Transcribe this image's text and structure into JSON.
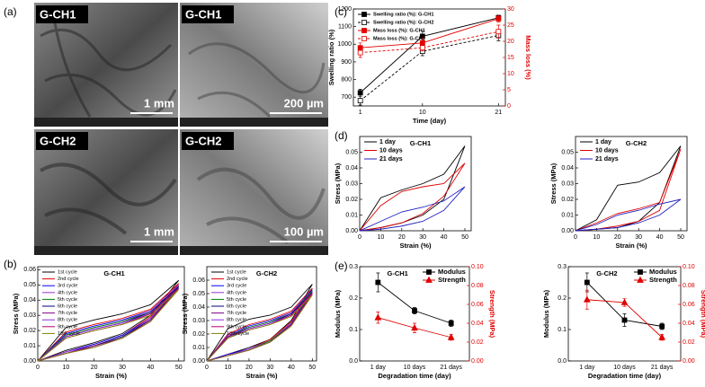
{
  "panel_labels": [
    "(a)",
    "(b)",
    "(c)",
    "(d)",
    "(e)"
  ],
  "sem_images": [
    {
      "label": "G-CH1",
      "scale": "1 mm"
    },
    {
      "label": "G-CH1",
      "scale": "200 µm"
    },
    {
      "label": "G-CH2",
      "scale": "1 mm"
    },
    {
      "label": "G-CH2",
      "scale": "100 µm"
    }
  ],
  "chart_data": [
    {
      "type": "line",
      "title": "G-CH1",
      "xlabel": "Strain (%)",
      "ylabel": "Stress (MPa)",
      "legend": "upper-left",
      "x": [
        0,
        10,
        20,
        30,
        40,
        50,
        40,
        30,
        20,
        10,
        0
      ],
      "xlim": [
        0,
        52
      ],
      "xticks": [
        0,
        10,
        20,
        30,
        40,
        50
      ],
      "ylim": [
        0,
        0.062
      ],
      "yticks": [
        {
          "value": 0,
          "label": "0.00"
        },
        0.01,
        0.02,
        0.03,
        0.04,
        0.05,
        0.06
      ],
      "series": [
        {
          "name": "1st cycle",
          "color": "#000000",
          "values": [
            0,
            0.022,
            0.027,
            0.031,
            0.037,
            0.053,
            0.03,
            0.018,
            0.012,
            0.007,
            0
          ]
        },
        {
          "name": "2nd cycle",
          "color": "#e00000",
          "values": [
            0,
            0.019,
            0.024,
            0.028,
            0.034,
            0.051,
            0.029,
            0.017,
            0.011,
            0.006,
            0
          ]
        },
        {
          "name": "3rd cycle",
          "color": "#0000ff",
          "values": [
            0,
            0.018,
            0.023,
            0.027,
            0.033,
            0.05,
            0.028,
            0.017,
            0.011,
            0.006,
            0
          ]
        },
        {
          "name": "4th cycle",
          "color": "#9933cc",
          "values": [
            0,
            0.017,
            0.022,
            0.026,
            0.033,
            0.05,
            0.028,
            0.016,
            0.01,
            0.006,
            0
          ]
        },
        {
          "name": "5th cycle",
          "color": "#008000",
          "values": [
            0,
            0.017,
            0.022,
            0.026,
            0.032,
            0.049,
            0.027,
            0.016,
            0.01,
            0.005,
            0
          ]
        },
        {
          "name": "6th cycle",
          "color": "#000080",
          "values": [
            0,
            0.016,
            0.021,
            0.025,
            0.032,
            0.049,
            0.027,
            0.016,
            0.01,
            0.005,
            0
          ]
        },
        {
          "name": "7th cycle",
          "color": "#800080",
          "values": [
            0,
            0.016,
            0.021,
            0.025,
            0.031,
            0.048,
            0.027,
            0.015,
            0.01,
            0.005,
            0
          ]
        },
        {
          "name": "8th cycle",
          "color": "#8a2be2",
          "values": [
            0,
            0.016,
            0.021,
            0.025,
            0.031,
            0.048,
            0.026,
            0.015,
            0.009,
            0.005,
            0
          ]
        },
        {
          "name": "9th cycle",
          "color": "#b0006b",
          "values": [
            0,
            0.015,
            0.02,
            0.024,
            0.031,
            0.048,
            0.026,
            0.015,
            0.009,
            0.005,
            0
          ]
        },
        {
          "name": "10th cycle",
          "color": "#808000",
          "values": [
            0,
            0.015,
            0.02,
            0.024,
            0.03,
            0.047,
            0.026,
            0.015,
            0.009,
            0.005,
            0
          ]
        }
      ]
    },
    {
      "type": "line",
      "title": "G-CH2",
      "xlabel": "Strain (%)",
      "ylabel": "Stress (MPa)",
      "legend": "upper-left",
      "x": [
        0,
        10,
        20,
        30,
        40,
        50,
        40,
        30,
        20,
        10,
        0
      ],
      "xlim": [
        0,
        52
      ],
      "xticks": [
        0,
        10,
        20,
        30,
        40,
        50
      ],
      "ylim": [
        0,
        0.07
      ],
      "yticks": [
        {
          "value": 0,
          "label": "0.00"
        },
        0.01,
        0.02,
        0.03,
        0.04,
        0.05,
        0.06
      ],
      "series": [
        {
          "name": "1st cycle",
          "color": "#000000",
          "values": [
            0,
            0.024,
            0.031,
            0.034,
            0.04,
            0.057,
            0.03,
            0.016,
            0.01,
            0.005,
            0
          ]
        },
        {
          "name": "2nd cycle",
          "color": "#e00000",
          "values": [
            0,
            0.02,
            0.027,
            0.031,
            0.037,
            0.054,
            0.029,
            0.016,
            0.009,
            0.005,
            0
          ]
        },
        {
          "name": "3rd cycle",
          "color": "#0000ff",
          "values": [
            0,
            0.019,
            0.026,
            0.03,
            0.036,
            0.053,
            0.028,
            0.015,
            0.009,
            0.005,
            0
          ]
        },
        {
          "name": "4th cycle",
          "color": "#9933cc",
          "values": [
            0,
            0.019,
            0.025,
            0.029,
            0.036,
            0.052,
            0.028,
            0.015,
            0.009,
            0.004,
            0
          ]
        },
        {
          "name": "5th cycle",
          "color": "#008000",
          "values": [
            0,
            0.018,
            0.025,
            0.029,
            0.035,
            0.052,
            0.027,
            0.015,
            0.008,
            0.004,
            0
          ]
        },
        {
          "name": "6th cycle",
          "color": "#000080",
          "values": [
            0,
            0.018,
            0.024,
            0.028,
            0.035,
            0.051,
            0.027,
            0.014,
            0.008,
            0.004,
            0
          ]
        },
        {
          "name": "7th cycle",
          "color": "#800080",
          "values": [
            0,
            0.018,
            0.024,
            0.028,
            0.034,
            0.051,
            0.027,
            0.014,
            0.008,
            0.004,
            0
          ]
        },
        {
          "name": "8th cycle",
          "color": "#8a2be2",
          "values": [
            0,
            0.017,
            0.024,
            0.028,
            0.034,
            0.05,
            0.026,
            0.014,
            0.008,
            0.004,
            0
          ]
        },
        {
          "name": "9th cycle",
          "color": "#b0006b",
          "values": [
            0,
            0.017,
            0.023,
            0.027,
            0.034,
            0.05,
            0.026,
            0.014,
            0.008,
            0.004,
            0
          ]
        },
        {
          "name": "10th cycle",
          "color": "#808000",
          "values": [
            0,
            0.017,
            0.023,
            0.027,
            0.033,
            0.049,
            0.026,
            0.014,
            0.008,
            0.004,
            0
          ]
        }
      ]
    },
    {
      "type": "line",
      "xlabel": "Time (day)",
      "ylabel": "Swelling ratio (%)",
      "y2label": "Mass loss (%)",
      "legend": "upper-left",
      "y2color": "#e00000",
      "markers": true,
      "x": [
        1,
        10,
        21
      ],
      "xlim": [
        0,
        22
      ],
      "xticks": [
        1,
        10,
        21
      ],
      "ylim": [
        650,
        1200
      ],
      "yticks": [
        700,
        800,
        900,
        1000,
        1100,
        1200
      ],
      "y2lim": [
        0,
        30
      ],
      "y2ticks": [
        0,
        5,
        10,
        15,
        20,
        25,
        30
      ],
      "series": [
        {
          "name": "Swelling ratio (%): G-CH1",
          "color": "#000000",
          "marker": "square",
          "values": [
            725,
            1045,
            1150
          ],
          "errors": [
            20,
            30,
            15
          ]
        },
        {
          "name": "Swelling ratio (%): G-CH2",
          "color": "#000000",
          "marker": "square",
          "open": true,
          "dashed": true,
          "values": [
            680,
            960,
            1050
          ],
          "errors": [
            25,
            25,
            30
          ]
        },
        {
          "name": "Mass loss (%): G-CH1",
          "color": "#e00000",
          "marker": "square",
          "axis": "y2",
          "values": [
            18,
            19.5,
            27
          ],
          "errors": [
            1.5,
            1.5,
            1
          ]
        },
        {
          "name": "Mass loss (%): G-CH2",
          "color": "#e00000",
          "marker": "square",
          "open": true,
          "dashed": true,
          "axis": "y2",
          "values": [
            16.5,
            18,
            23
          ],
          "errors": [
            1.5,
            1,
            2
          ]
        }
      ]
    },
    {
      "type": "line",
      "title": "G-CH1",
      "xlabel": "Strain (%)",
      "ylabel": "Stress (MPa)",
      "legend": "upper-left",
      "x": [
        0,
        10,
        20,
        30,
        40,
        50,
        40,
        30,
        20,
        10,
        0
      ],
      "xlim": [
        0,
        53
      ],
      "xticks": [
        0,
        10,
        20,
        30,
        40,
        50
      ],
      "ylim": [
        0,
        0.06
      ],
      "yticks": [
        {
          "value": 0,
          "label": "0.00"
        },
        0.01,
        0.02,
        0.03,
        0.04,
        0.05
      ],
      "series": [
        {
          "name": "1 day",
          "color": "#000000",
          "values": [
            0,
            0.021,
            0.026,
            0.03,
            0.036,
            0.054,
            0.02,
            0.01,
            0.005,
            0.002,
            0
          ]
        },
        {
          "name": "10 days",
          "color": "#e00000",
          "values": [
            0,
            0.016,
            0.025,
            0.028,
            0.03,
            0.043,
            0.022,
            0.011,
            0.005,
            0.002,
            0
          ]
        },
        {
          "name": "21 days",
          "color": "#2020c0",
          "values": [
            0,
            0.006,
            0.012,
            0.015,
            0.019,
            0.028,
            0.013,
            0.006,
            0.003,
            0.001,
            0
          ]
        }
      ]
    },
    {
      "type": "line",
      "title": "G-CH2",
      "xlabel": "Strain (%)",
      "ylabel": "Stress (MPa)",
      "legend": "upper-left",
      "x": [
        0,
        10,
        20,
        30,
        40,
        50,
        40,
        30,
        20,
        10,
        0
      ],
      "xlim": [
        0,
        53
      ],
      "xticks": [
        0,
        10,
        20,
        30,
        40,
        50
      ],
      "ylim": [
        0,
        0.06
      ],
      "yticks": [
        {
          "value": 0,
          "label": "0.00"
        },
        0.01,
        0.02,
        0.03,
        0.04,
        0.05
      ],
      "series": [
        {
          "name": "1 day",
          "color": "#000000",
          "values": [
            0,
            0.007,
            0.029,
            0.031,
            0.037,
            0.054,
            0.018,
            0.006,
            0.002,
            0.001,
            0
          ]
        },
        {
          "name": "10 days",
          "color": "#e00000",
          "values": [
            0,
            0.005,
            0.011,
            0.014,
            0.018,
            0.052,
            0.013,
            0.006,
            0.003,
            0.001,
            0
          ]
        },
        {
          "name": "21 days",
          "color": "#2020c0",
          "values": [
            0,
            0.004,
            0.01,
            0.013,
            0.017,
            0.02,
            0.01,
            0.005,
            0.002,
            0.001,
            0
          ]
        }
      ]
    },
    {
      "type": "line",
      "title": "G-CH1",
      "xlabel": "Degradation time (day)",
      "ylabel": "Modulus (MPa)",
      "y2label": "Strength (MPa)",
      "legend": "upper-right",
      "y2color": "#e00000",
      "markers": true,
      "categories": [
        "1 day",
        "10 days",
        "21 days"
      ],
      "ylim": [
        0,
        0.3
      ],
      "yticks": [
        {
          "value": 0,
          "label": "0.0"
        },
        0.1,
        0.2,
        0.3
      ],
      "y2lim": [
        0,
        0.1
      ],
      "y2ticks": [
        {
          "value": 0,
          "label": "0.00"
        },
        0.02,
        0.04,
        0.06,
        0.08,
        {
          "value": 0.1,
          "label": "0.10"
        }
      ],
      "series": [
        {
          "name": "Modulus",
          "color": "#000000",
          "marker": "square",
          "values": [
            0.25,
            0.16,
            0.12
          ],
          "errors": [
            0.03,
            0.01,
            0.01
          ]
        },
        {
          "name": "Strength",
          "color": "#e00000",
          "marker": "triangle",
          "axis": "y2",
          "values": [
            0.046,
            0.035,
            0.025
          ],
          "errors": [
            0.006,
            0.005,
            0.003
          ]
        }
      ]
    },
    {
      "type": "line",
      "title": "G-CH2",
      "xlabel": "Degradation time (day)",
      "ylabel": "Modulus (MPa)",
      "y2label": "Strength (MPa)",
      "legend": "upper-right",
      "y2color": "#e00000",
      "markers": true,
      "categories": [
        "1 day",
        "10 days",
        "21 days"
      ],
      "ylim": [
        0,
        0.3
      ],
      "yticks": [
        {
          "value": 0,
          "label": "0.0"
        },
        0.1,
        0.2,
        0.3
      ],
      "y2lim": [
        0,
        0.1
      ],
      "y2ticks": [
        {
          "value": 0,
          "label": "0.00"
        },
        0.02,
        0.04,
        0.06,
        0.08,
        {
          "value": 0.1,
          "label": "0.10"
        }
      ],
      "series": [
        {
          "name": "Modulus",
          "color": "#000000",
          "marker": "square",
          "values": [
            0.25,
            0.13,
            0.11
          ],
          "errors": [
            0.03,
            0.02,
            0.01
          ]
        },
        {
          "name": "Strength",
          "color": "#e00000",
          "marker": "triangle",
          "axis": "y2",
          "values": [
            0.065,
            0.062,
            0.025
          ],
          "errors": [
            0.01,
            0.004,
            0.003
          ]
        }
      ]
    }
  ]
}
